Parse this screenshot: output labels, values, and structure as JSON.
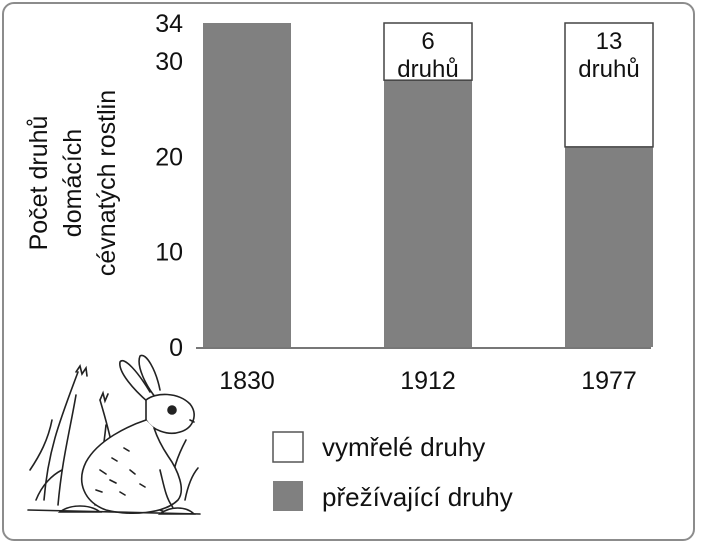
{
  "chart_data": {
    "type": "bar",
    "stacked": true,
    "categories": [
      "1830",
      "1912",
      "1977"
    ],
    "series": [
      {
        "name": "přežívající druhy",
        "values": [
          34,
          28,
          21
        ],
        "color": "#808080"
      },
      {
        "name": "vymřelé druhy",
        "values": [
          0,
          6,
          13
        ],
        "color": "#ffffff"
      }
    ],
    "ylabel": [
      "Počet druhů",
      "domácích",
      "cévnatých rostlin"
    ],
    "yticks": [
      0,
      10,
      20,
      30,
      34
    ],
    "ylim": [
      0,
      34
    ],
    "annotations": [
      {
        "category": "1912",
        "lines": [
          "6",
          "druhů"
        ]
      },
      {
        "category": "1977",
        "lines": [
          "13",
          "druhů"
        ]
      }
    ],
    "legend_position": "bottom-right",
    "grid": false
  },
  "illustration": {
    "icon": "rabbit-icon"
  }
}
